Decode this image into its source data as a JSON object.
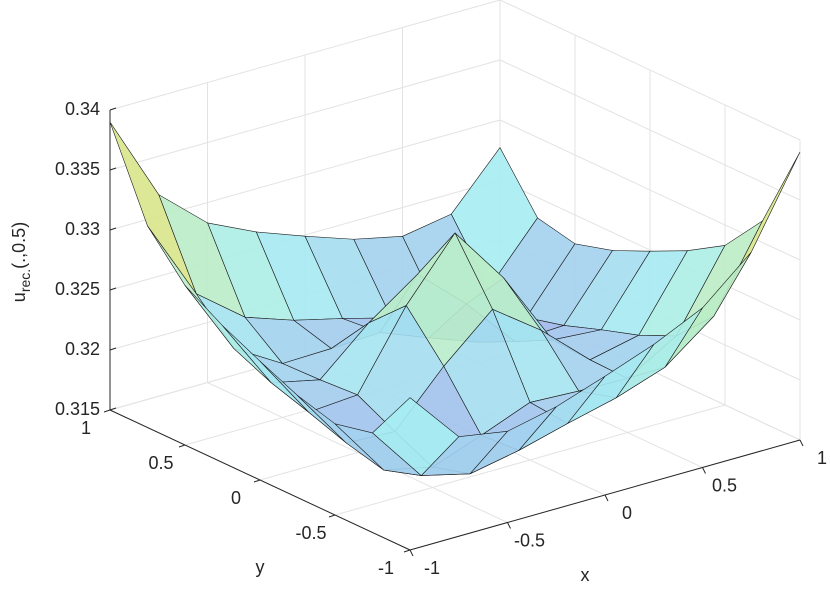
{
  "chart_data": {
    "type": "surface",
    "xlabel": "x",
    "ylabel": "y",
    "zlabel": {
      "base": "u",
      "subscript": "rec.",
      "suffix": "(.,0.5)"
    },
    "x": [
      -1,
      -0.75,
      -0.5,
      -0.25,
      0,
      0.25,
      0.5,
      0.75,
      1
    ],
    "y": [
      -1,
      -0.75,
      -0.5,
      -0.25,
      0,
      0.25,
      0.5,
      0.75,
      1
    ],
    "z": [
      [
        0.3277,
        0.3233,
        0.3226,
        0.3235,
        0.3249,
        0.3264,
        0.3283,
        0.3318,
        0.339
      ],
      [
        0.3233,
        0.3186,
        0.3176,
        0.3184,
        0.3195,
        0.3205,
        0.3219,
        0.325,
        0.3318
      ],
      [
        0.3226,
        0.3176,
        0.3167,
        0.3182,
        0.3198,
        0.3196,
        0.3195,
        0.3219,
        0.3283
      ],
      [
        0.3235,
        0.3184,
        0.3182,
        0.3225,
        0.3261,
        0.3232,
        0.3196,
        0.3205,
        0.3264
      ],
      [
        0.3249,
        0.3195,
        0.3198,
        0.3261,
        0.331,
        0.3261,
        0.3198,
        0.3195,
        0.3249
      ],
      [
        0.3264,
        0.3205,
        0.3196,
        0.3232,
        0.3261,
        0.3225,
        0.3182,
        0.3184,
        0.3235
      ],
      [
        0.3283,
        0.3219,
        0.3195,
        0.3196,
        0.3198,
        0.3182,
        0.3167,
        0.3176,
        0.3226
      ],
      [
        0.3318,
        0.325,
        0.3219,
        0.3205,
        0.3195,
        0.3184,
        0.3176,
        0.3186,
        0.3233
      ],
      [
        0.339,
        0.3318,
        0.3283,
        0.3264,
        0.3249,
        0.3235,
        0.3226,
        0.3233,
        0.3277
      ]
    ],
    "xlim": [
      -1,
      1
    ],
    "ylim": [
      -1,
      1
    ],
    "zlim": [
      0.315,
      0.34
    ],
    "xticks": [
      -1,
      -0.5,
      0,
      0.5,
      1
    ],
    "yticks": [
      -1,
      -0.5,
      0,
      0.5,
      1
    ],
    "zticks": [
      0.315,
      0.32,
      0.325,
      0.33,
      0.335,
      0.34
    ],
    "grid": true,
    "colormap": [
      "#9c9ce6",
      "#a6eef2",
      "#d8e88a",
      "#f0a8a0"
    ]
  }
}
